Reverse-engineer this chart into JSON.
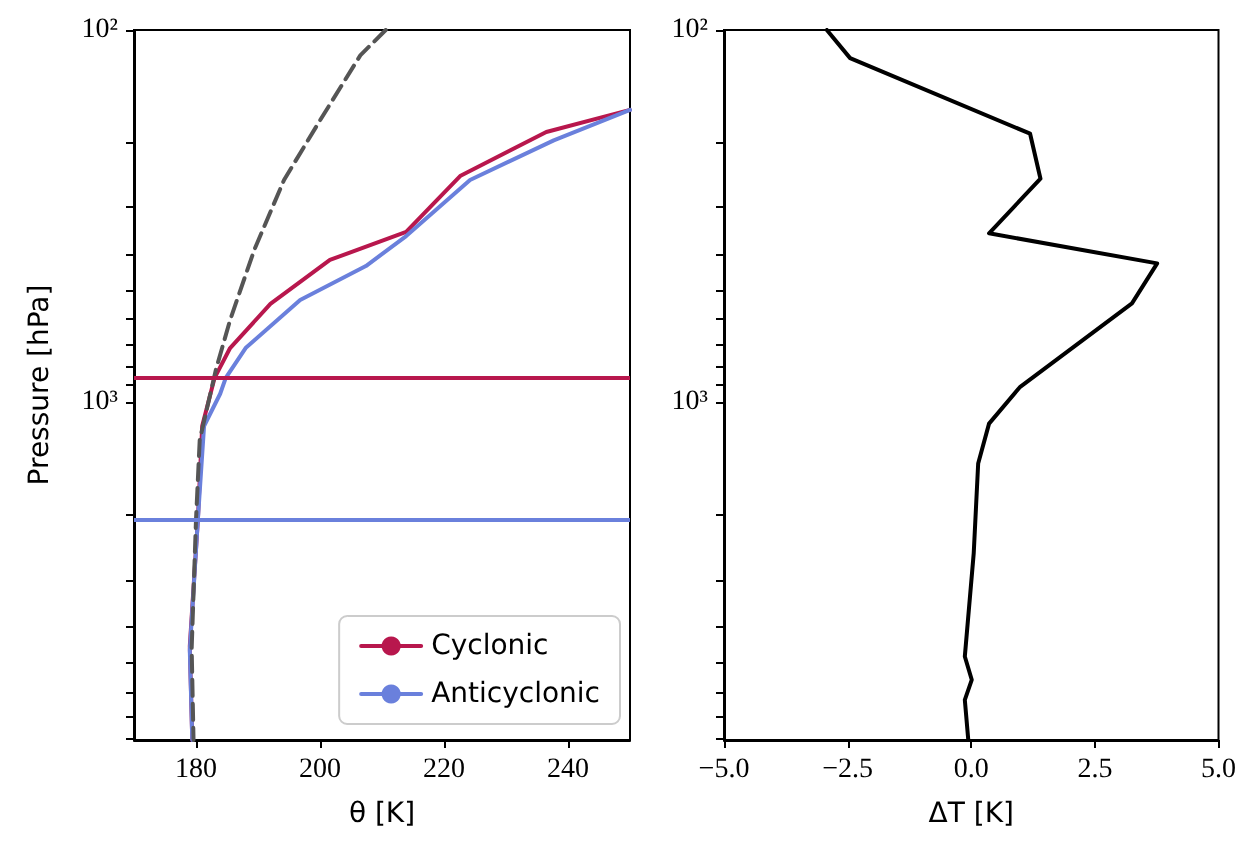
{
  "chart_data": [
    {
      "type": "line",
      "xlabel": "θ [K]",
      "ylabel": "Pressure [hPa]",
      "log": "y",
      "marker": "none",
      "legend": "bottom right",
      "xlim": [
        170,
        250
      ],
      "xticks": [
        180,
        200,
        220,
        240
      ],
      "ylim": [
        8100,
        100
      ],
      "yticks": [
        {
          "value": 100,
          "label": "10²"
        },
        {
          "value": 200,
          "label": null
        },
        {
          "value": 300,
          "label": null
        },
        {
          "value": 400,
          "label": null
        },
        {
          "value": 500,
          "label": null
        },
        {
          "value": 600,
          "label": null
        },
        {
          "value": 700,
          "label": null
        },
        {
          "value": 800,
          "label": null
        },
        {
          "value": 900,
          "label": null
        },
        {
          "value": 1000,
          "label": "10³"
        },
        {
          "value": 2000,
          "label": null
        },
        {
          "value": 3000,
          "label": null
        },
        {
          "value": 4000,
          "label": null
        },
        {
          "value": 5000,
          "label": null
        },
        {
          "value": 6000,
          "label": null
        },
        {
          "value": 7000,
          "label": null
        },
        {
          "value": 8000,
          "label": null
        }
      ],
      "series": [
        {
          "name": "Cyclonic",
          "color": "#b8174d",
          "line_style": "solid",
          "x": [
            250,
            236.5,
            222.6,
            213.9,
            201.6,
            192,
            185.5,
            183,
            181,
            180.3,
            179,
            179.4
          ],
          "values": [
            164,
            188,
            247,
            349,
            415,
            545,
            716,
            861,
            1160,
            2075,
            4530,
            8100
          ]
        },
        {
          "name": "Anticyclonic",
          "color": "#6a80dc",
          "line_style": "solid",
          "x": [
            250,
            237.7,
            224.2,
            213.9,
            207.4,
            196.8,
            188,
            184.8,
            183.9,
            181.3,
            180.3,
            179,
            179.4
          ],
          "values": [
            164,
            198,
            253,
            358,
            431,
            532,
            716,
            861,
            950,
            1160,
            2075,
            4650,
            8100
          ]
        },
        {
          "color": "#555555",
          "line_style": "dashed",
          "x": [
            210.6,
            206.5,
            200,
            194.2,
            189.4,
            185.5,
            183.2,
            180.6,
            180,
            179.3,
            179.6
          ],
          "values": [
            100,
            117,
            175,
            253,
            390,
            602,
            820,
            1265,
            2075,
            4600,
            8100
          ]
        }
      ],
      "ref_lines": [
        {
          "axis": "y",
          "value": 861,
          "color": "#b8174d"
        },
        {
          "axis": "y",
          "value": 2075,
          "color": "#6a80dc"
        }
      ]
    },
    {
      "type": "line",
      "xlabel": "ΔT [K]",
      "log": "y",
      "marker": "none",
      "xlim": [
        -5,
        5
      ],
      "xticks": [
        {
          "value": -5,
          "label": "−5.0"
        },
        {
          "value": -2.5,
          "label": "−2.5"
        },
        {
          "value": 0,
          "label": "0.0"
        },
        {
          "value": 2.5,
          "label": "2.5"
        },
        {
          "value": 5,
          "label": "5.0"
        }
      ],
      "ylim": [
        8100,
        100
      ],
      "yticks": [
        {
          "value": 100,
          "label": "10²"
        },
        {
          "value": 200,
          "label": null
        },
        {
          "value": 300,
          "label": null
        },
        {
          "value": 400,
          "label": null
        },
        {
          "value": 500,
          "label": null
        },
        {
          "value": 600,
          "label": null
        },
        {
          "value": 700,
          "label": null
        },
        {
          "value": 800,
          "label": null
        },
        {
          "value": 900,
          "label": null
        },
        {
          "value": 1000,
          "label": "10³"
        },
        {
          "value": 2000,
          "label": null
        },
        {
          "value": 3000,
          "label": null
        },
        {
          "value": 4000,
          "label": null
        },
        {
          "value": 5000,
          "label": null
        },
        {
          "value": 6000,
          "label": null
        },
        {
          "value": 7000,
          "label": null
        },
        {
          "value": 8000,
          "label": null
        }
      ],
      "series": [
        {
          "color": "#000000",
          "line_style": "solid",
          "x": [
            -2.92,
            -2.45,
            1.19,
            1.4,
            0.36,
            3.76,
            3.25,
            0.99,
            0.36,
            0.14,
            0.05,
            -0.13,
            0.01,
            -0.13,
            -0.06
          ],
          "values": [
            100,
            119,
            190,
            251,
            352,
            424,
            543,
            910,
            1143,
            1463,
            2550,
            4830,
            5580,
            6320,
            8100
          ]
        }
      ]
    }
  ]
}
